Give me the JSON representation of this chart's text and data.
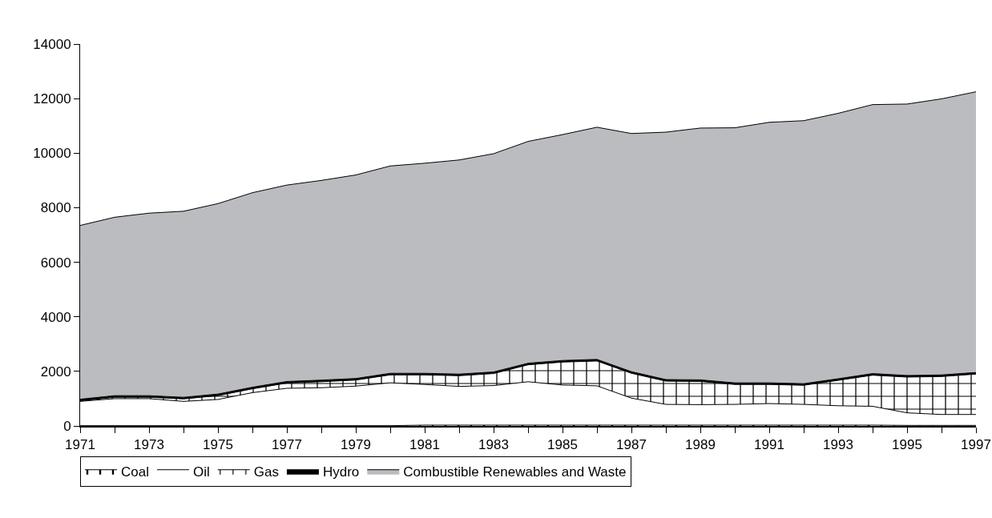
{
  "chart_data": {
    "type": "area",
    "stacked": true,
    "x": [
      1971,
      1972,
      1973,
      1974,
      1975,
      1976,
      1977,
      1978,
      1979,
      1980,
      1981,
      1982,
      1983,
      1984,
      1985,
      1986,
      1987,
      1988,
      1989,
      1990,
      1991,
      1992,
      1993,
      1994,
      1995,
      1996,
      1997
    ],
    "series": [
      {
        "name": "Coal",
        "color": "#ffffff",
        "values": [
          10,
          10,
          10,
          10,
          10,
          10,
          10,
          10,
          10,
          10,
          30,
          30,
          30,
          30,
          30,
          30,
          30,
          30,
          30,
          30,
          30,
          30,
          30,
          30,
          20,
          20,
          20
        ]
      },
      {
        "name": "Oil",
        "color": "#ffffff",
        "values": [
          890,
          990,
          990,
          890,
          960,
          1210,
          1370,
          1390,
          1450,
          1570,
          1490,
          1420,
          1450,
          1590,
          1470,
          1440,
          990,
          760,
          750,
          760,
          790,
          760,
          710,
          690,
          460,
          400,
          400
        ]
      },
      {
        "name": "Gas",
        "color": "#ffffff",
        "values": [
          20,
          50,
          50,
          90,
          140,
          140,
          190,
          220,
          220,
          290,
          350,
          390,
          440,
          620,
          840,
          910,
          910,
          850,
          850,
          730,
          700,
          700,
          930,
          1140,
          1310,
          1390,
          1480
        ]
      },
      {
        "name": "Hydro",
        "color": "#000000",
        "values": [
          60,
          60,
          60,
          60,
          60,
          60,
          60,
          60,
          60,
          60,
          60,
          60,
          60,
          60,
          60,
          60,
          60,
          60,
          60,
          60,
          60,
          60,
          60,
          60,
          60,
          60,
          60
        ]
      },
      {
        "name": "Combustible Renewables and Waste",
        "color": "#bbbcc0",
        "values": [
          6370,
          6540,
          6690,
          6820,
          6980,
          7130,
          7200,
          7320,
          7460,
          7600,
          7700,
          7850,
          8000,
          8130,
          8280,
          8510,
          8730,
          9070,
          9230,
          9350,
          9550,
          9640,
          9730,
          9860,
          9950,
          10120,
          10290
        ]
      }
    ],
    "xlim": [
      1971,
      1997
    ],
    "xticks": [
      1971,
      {
        "value": 1972,
        "label": null
      },
      1973,
      {
        "value": 1974,
        "label": null
      },
      1975,
      {
        "value": 1976,
        "label": null
      },
      1977,
      {
        "value": 1978,
        "label": null
      },
      1979,
      {
        "value": 1980,
        "label": null
      },
      1981,
      {
        "value": 1982,
        "label": null
      },
      1983,
      {
        "value": 1984,
        "label": null
      },
      1985,
      {
        "value": 1986,
        "label": null
      },
      1987,
      {
        "value": 1988,
        "label": null
      },
      1989,
      {
        "value": 1990,
        "label": null
      },
      1991,
      {
        "value": 1992,
        "label": null
      },
      1993,
      {
        "value": 1994,
        "label": null
      },
      1995,
      {
        "value": 1996,
        "label": null
      },
      1997
    ],
    "ylim": [
      0,
      14000
    ],
    "yticks": [
      0,
      2000,
      4000,
      6000,
      8000,
      10000,
      12000,
      14000
    ],
    "grid": false,
    "legend": "bottom"
  }
}
